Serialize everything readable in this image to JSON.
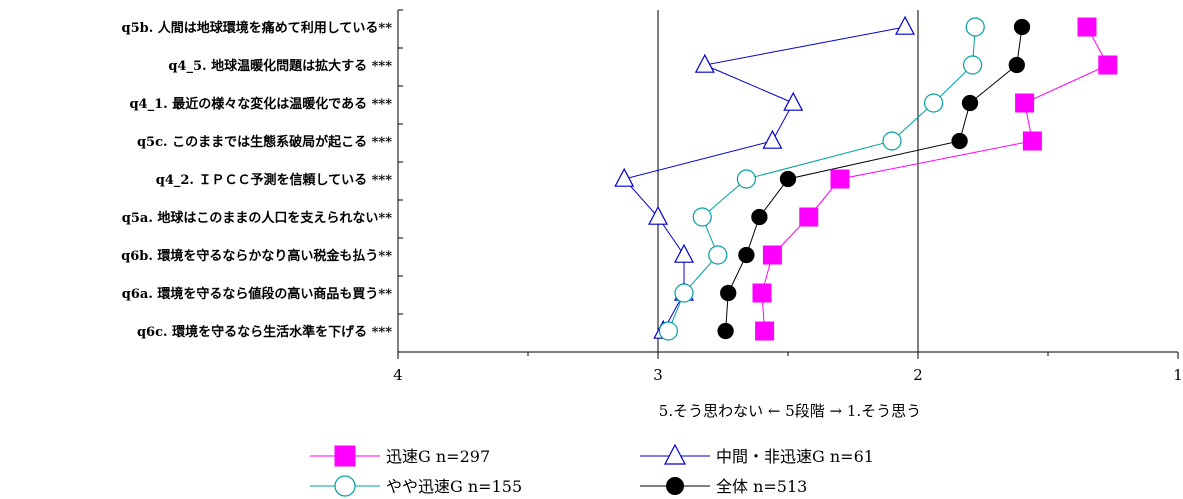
{
  "chart_data": {
    "type": "line",
    "orientation": "horizontal",
    "categories": [
      "q5b. 人間は地球環境を痛めて利用している**",
      "q4_5. 地球温暖化問題は拡大する ***",
      "q4_1. 最近の様々な変化は温暖化である ***",
      "q5c. このままでは生態系破局が起こる ***",
      "q4_2. ＩＰＣＣ予測を信頼している ***",
      "q5a. 地球はこのままの人口を支えられない**",
      "q6b. 環境を守るならかなり高い税金も払う**",
      "q6a. 環境を守るなら値段の高い商品も買う**",
      "q6c. 環境を守るなら生活水準を下げる ***"
    ],
    "series": [
      {
        "name": "迅速G n=297",
        "color": "#ff00ff",
        "marker": "square",
        "values": [
          1.35,
          1.27,
          1.59,
          1.56,
          2.3,
          2.42,
          2.56,
          2.6,
          2.59
        ]
      },
      {
        "name": "中間・非迅速G n=61",
        "color": "#0000cc",
        "marker": "triangle",
        "values": [
          2.05,
          2.82,
          2.48,
          2.56,
          3.13,
          3.0,
          2.9,
          2.9,
          2.98
        ]
      },
      {
        "name": "やや迅速G n=155",
        "color": "#00a0a0",
        "marker": "circle-open",
        "values": [
          1.78,
          1.79,
          1.94,
          2.1,
          2.66,
          2.83,
          2.77,
          2.9,
          2.96
        ]
      },
      {
        "name": "全体 n=513",
        "color": "#000000",
        "marker": "circle-filled",
        "values": [
          1.6,
          1.62,
          1.8,
          1.84,
          2.5,
          2.61,
          2.66,
          2.73,
          2.74
        ]
      }
    ],
    "x_ticks": [
      "4",
      "3",
      "2",
      "1"
    ],
    "xlim": [
      4,
      1
    ],
    "xlabel": "5.そう思わない ← 5段階 → 1.そう思う",
    "gridlines": [
      3,
      2
    ],
    "legend_position": "bottom"
  }
}
